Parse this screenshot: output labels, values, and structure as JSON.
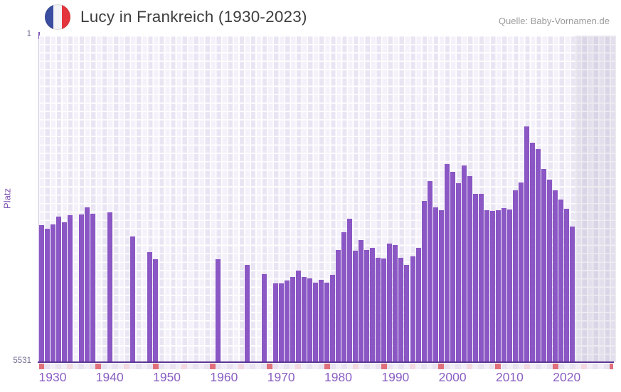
{
  "header": {
    "title": "Lucy in Frankreich (1930-2023)",
    "source": "Quelle: Baby-Vornamen.de",
    "flag_icon": "france-flag-icon"
  },
  "chart_data": {
    "type": "bar",
    "title": "Lucy in Frankreich (1930-2023)",
    "series_name": "Lucy",
    "ylabel": "Platz",
    "y_axis": {
      "min": 1,
      "max": 5531,
      "min_label": "1",
      "max_label": "5531",
      "inverted": true
    },
    "x_axis": {
      "range_start": 1930,
      "range_end": 2030,
      "labels": [
        "1930",
        "1940",
        "1950",
        "1960",
        "1970",
        "1980",
        "1990",
        "2000",
        "2010",
        "2020"
      ]
    },
    "no_data_region_start": 2024,
    "legend_position": "none",
    "grid": true,
    "colors": {
      "bar": "#8a57c4",
      "axis_line": "#5a3794",
      "decade_tick": "#e0707c",
      "half_decade_tick": "#f3d8e1",
      "x_label": "#8b5fc3",
      "y_label": "#746a92",
      "ylabel_text": "#7b4fae",
      "title": "#3e3e3e",
      "source": "#9b9b9b",
      "plot_bg_light": "#f4f1fa",
      "plot_bg_dark": "#eae5f3",
      "flag_blue": "#3b4da0",
      "flag_red": "#e4353c"
    },
    "points": [
      {
        "year": 1930,
        "rank": 3210
      },
      {
        "year": 1931,
        "rank": 3270
      },
      {
        "year": 1932,
        "rank": 3200
      },
      {
        "year": 1933,
        "rank": 3065
      },
      {
        "year": 1934,
        "rank": 3165
      },
      {
        "year": 1935,
        "rank": 3045
      },
      {
        "year": 1937,
        "rank": 3030
      },
      {
        "year": 1938,
        "rank": 2910
      },
      {
        "year": 1939,
        "rank": 3020
      },
      {
        "year": 1942,
        "rank": 2995
      },
      {
        "year": 1946,
        "rank": 3405
      },
      {
        "year": 1949,
        "rank": 3670
      },
      {
        "year": 1950,
        "rank": 3790
      },
      {
        "year": 1961,
        "rank": 3790
      },
      {
        "year": 1966,
        "rank": 3885
      },
      {
        "year": 1969,
        "rank": 4040
      },
      {
        "year": 1971,
        "rank": 4200
      },
      {
        "year": 1972,
        "rank": 4200
      },
      {
        "year": 1973,
        "rank": 4150
      },
      {
        "year": 1974,
        "rank": 4090
      },
      {
        "year": 1975,
        "rank": 3980
      },
      {
        "year": 1976,
        "rank": 4090
      },
      {
        "year": 1977,
        "rank": 4115
      },
      {
        "year": 1978,
        "rank": 4185
      },
      {
        "year": 1979,
        "rank": 4135
      },
      {
        "year": 1980,
        "rank": 4185
      },
      {
        "year": 1981,
        "rank": 4055
      },
      {
        "year": 1982,
        "rank": 3630
      },
      {
        "year": 1983,
        "rank": 3330
      },
      {
        "year": 1984,
        "rank": 3105
      },
      {
        "year": 1985,
        "rank": 3645
      },
      {
        "year": 1986,
        "rank": 3465
      },
      {
        "year": 1987,
        "rank": 3630
      },
      {
        "year": 1988,
        "rank": 3595
      },
      {
        "year": 1989,
        "rank": 3765
      },
      {
        "year": 1990,
        "rank": 3775
      },
      {
        "year": 1991,
        "rank": 3525
      },
      {
        "year": 1992,
        "rank": 3550
      },
      {
        "year": 1993,
        "rank": 3765
      },
      {
        "year": 1994,
        "rank": 3885
      },
      {
        "year": 1995,
        "rank": 3740
      },
      {
        "year": 1996,
        "rank": 3595
      },
      {
        "year": 1997,
        "rank": 2800
      },
      {
        "year": 1998,
        "rank": 2465
      },
      {
        "year": 1999,
        "rank": 2910
      },
      {
        "year": 2000,
        "rank": 2960
      },
      {
        "year": 2001,
        "rank": 2175
      },
      {
        "year": 2002,
        "rank": 2310
      },
      {
        "year": 2003,
        "rank": 2500
      },
      {
        "year": 2004,
        "rank": 2200
      },
      {
        "year": 2005,
        "rank": 2380
      },
      {
        "year": 2006,
        "rank": 2680
      },
      {
        "year": 2007,
        "rank": 2680
      },
      {
        "year": 2008,
        "rank": 2960
      },
      {
        "year": 2009,
        "rank": 2970
      },
      {
        "year": 2010,
        "rank": 2960
      },
      {
        "year": 2011,
        "rank": 2925
      },
      {
        "year": 2012,
        "rank": 2945
      },
      {
        "year": 2013,
        "rank": 2620
      },
      {
        "year": 2014,
        "rank": 2490
      },
      {
        "year": 2015,
        "rank": 1540
      },
      {
        "year": 2016,
        "rank": 1815
      },
      {
        "year": 2017,
        "rank": 1925
      },
      {
        "year": 2018,
        "rank": 2260
      },
      {
        "year": 2019,
        "rank": 2440
      },
      {
        "year": 2020,
        "rank": 2620
      },
      {
        "year": 2021,
        "rank": 2780
      },
      {
        "year": 2022,
        "rank": 2935
      },
      {
        "year": 2023,
        "rank": 3235
      }
    ]
  }
}
